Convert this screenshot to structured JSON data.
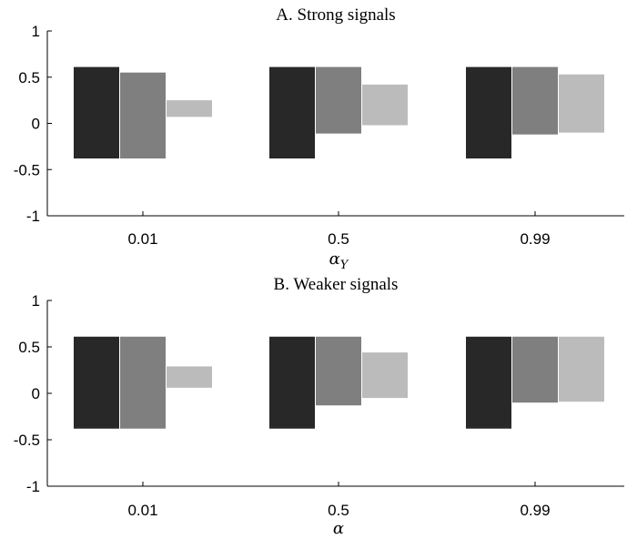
{
  "chart_data": [
    {
      "type": "bar",
      "title": "A. Strong signals",
      "xlabel": "α_Y",
      "ylabel": "",
      "ylim": [
        -1,
        1
      ],
      "yticks": [
        "1",
        "0.5",
        "0",
        "-0.5",
        "-1"
      ],
      "categories": [
        "0.01",
        "0.5",
        "0.99"
      ],
      "series": [
        {
          "color": "#282828",
          "low": [
            -0.38,
            -0.38,
            -0.38
          ],
          "high": [
            0.61,
            0.61,
            0.61
          ]
        },
        {
          "color": "#7f7f7f",
          "low": [
            -0.38,
            -0.11,
            -0.12
          ],
          "high": [
            0.55,
            0.61,
            0.61
          ]
        },
        {
          "color": "#bbbbbb",
          "low": [
            0.07,
            -0.02,
            -0.1
          ],
          "high": [
            0.25,
            0.42,
            0.53
          ]
        }
      ]
    },
    {
      "type": "bar",
      "title": "B. Weaker signals",
      "xlabel": "α",
      "ylabel": "",
      "ylim": [
        -1,
        1
      ],
      "yticks": [
        "1",
        "0.5",
        "0",
        "-0.5",
        "-1"
      ],
      "categories": [
        "0.01",
        "0.5",
        "0.99"
      ],
      "series": [
        {
          "color": "#282828",
          "low": [
            -0.38,
            -0.38,
            -0.38
          ],
          "high": [
            0.61,
            0.61,
            0.61
          ]
        },
        {
          "color": "#7f7f7f",
          "low": [
            -0.38,
            -0.13,
            -0.1
          ],
          "high": [
            0.61,
            0.61,
            0.61
          ]
        },
        {
          "color": "#bbbbbb",
          "low": [
            0.06,
            -0.05,
            -0.09
          ],
          "high": [
            0.29,
            0.44,
            0.61
          ]
        }
      ]
    }
  ]
}
